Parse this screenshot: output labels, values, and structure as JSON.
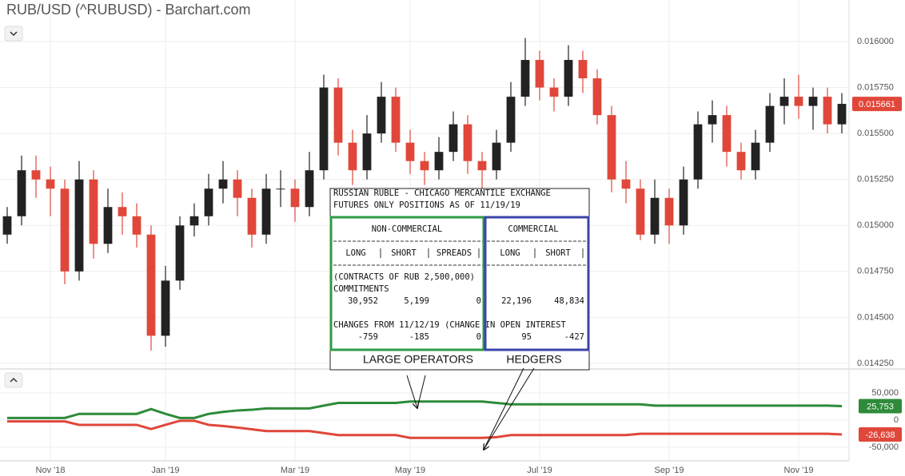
{
  "chart_data": [
    {
      "type": "candlestick",
      "title": "RUB/USD (^RUBUSD) - Barchart.com",
      "open": [
        0.01495,
        0.01505,
        0.0153,
        0.01525,
        0.0152,
        0.01475,
        0.01525,
        0.0149,
        0.0151,
        0.01505,
        0.01495,
        0.0144,
        0.0147,
        0.015,
        0.01505,
        0.0152,
        0.01525,
        0.01515,
        0.01495,
        0.0152,
        0.0152,
        0.0151,
        0.0153,
        0.01575,
        0.01545,
        0.0153,
        0.0155,
        0.0157,
        0.01545,
        0.01535,
        0.0153,
        0.0154,
        0.01555,
        0.01535,
        0.0153,
        0.01545,
        0.0157,
        0.0159,
        0.01575,
        0.0157,
        0.0159,
        0.0158,
        0.0156,
        0.01525,
        0.0152,
        0.01495,
        0.01515,
        0.015,
        0.01525,
        0.01555,
        0.0156,
        0.0154,
        0.0153,
        0.01545,
        0.01565,
        0.0157,
        0.01565,
        0.0157,
        0.01555
      ],
      "high": [
        0.0151,
        0.01538,
        0.01538,
        0.01532,
        0.01525,
        0.01535,
        0.0153,
        0.0152,
        0.01518,
        0.01512,
        0.015,
        0.01478,
        0.01505,
        0.01512,
        0.01528,
        0.01535,
        0.0153,
        0.0152,
        0.01528,
        0.0153,
        0.01525,
        0.0154,
        0.01582,
        0.0158,
        0.01552,
        0.0156,
        0.01578,
        0.01575,
        0.01552,
        0.0154,
        0.01548,
        0.01562,
        0.0156,
        0.0154,
        0.01552,
        0.01578,
        0.01602,
        0.01595,
        0.0158,
        0.01598,
        0.01595,
        0.01585,
        0.01565,
        0.01535,
        0.01525,
        0.01525,
        0.0152,
        0.01532,
        0.01562,
        0.01568,
        0.01565,
        0.01545,
        0.01552,
        0.01572,
        0.0158,
        0.01582,
        0.01575,
        0.01575,
        0.01572
      ],
      "low": [
        0.0149,
        0.015,
        0.01515,
        0.01505,
        0.01468,
        0.0147,
        0.01482,
        0.01485,
        0.01495,
        0.01488,
        0.01432,
        0.01434,
        0.01465,
        0.01494,
        0.015,
        0.01512,
        0.01505,
        0.01488,
        0.0149,
        0.0151,
        0.01502,
        0.01505,
        0.01525,
        0.01538,
        0.01522,
        0.01525,
        0.01545,
        0.0154,
        0.01528,
        0.01522,
        0.01525,
        0.01535,
        0.01528,
        0.0152,
        0.01525,
        0.0154,
        0.01565,
        0.01568,
        0.01562,
        0.01565,
        0.01572,
        0.01555,
        0.01518,
        0.01512,
        0.01492,
        0.0149,
        0.0149,
        0.01495,
        0.0152,
        0.01545,
        0.01532,
        0.01525,
        0.01525,
        0.0154,
        0.01555,
        0.01558,
        0.01552,
        0.0155,
        0.0155
      ],
      "close": [
        0.01505,
        0.0153,
        0.01525,
        0.0152,
        0.01475,
        0.01525,
        0.0149,
        0.0151,
        0.01505,
        0.01495,
        0.0144,
        0.0147,
        0.015,
        0.01505,
        0.0152,
        0.01525,
        0.01515,
        0.01495,
        0.0152,
        0.0152,
        0.0151,
        0.0153,
        0.01575,
        0.01545,
        0.0153,
        0.0155,
        0.0157,
        0.01545,
        0.01535,
        0.0153,
        0.0154,
        0.01555,
        0.01535,
        0.0153,
        0.01545,
        0.0157,
        0.0159,
        0.01575,
        0.0157,
        0.0159,
        0.0158,
        0.0156,
        0.01525,
        0.0152,
        0.01495,
        0.01515,
        0.015,
        0.01525,
        0.01555,
        0.0156,
        0.0154,
        0.0153,
        0.01545,
        0.01565,
        0.0157,
        0.01565,
        0.0157,
        0.01555,
        0.015661
      ],
      "up_color": "#222222",
      "down_color": "#e0473a",
      "ylim": [
        0.014228,
        0.016226
      ],
      "yticks": [
        {
          "value": 0.016,
          "label": "0.016000"
        },
        {
          "value": 0.01575,
          "label": "0.015750"
        },
        {
          "value": 0.0155,
          "label": "0.015500"
        },
        {
          "value": 0.01525,
          "label": "0.015250"
        },
        {
          "value": 0.015,
          "label": "0.015000"
        },
        {
          "value": 0.01475,
          "label": "0.014750"
        },
        {
          "value": 0.0145,
          "label": "0.014500"
        },
        {
          "value": 0.01425,
          "label": "0.014250"
        }
      ],
      "grid": true
    },
    {
      "type": "line",
      "categories": [
        null,
        null,
        null,
        "Nov '18",
        null,
        null,
        null,
        null,
        null,
        null,
        null,
        "Jan '19",
        null,
        null,
        null,
        null,
        null,
        null,
        null,
        null,
        "Mar '19",
        null,
        null,
        null,
        null,
        null,
        null,
        null,
        "May '19",
        null,
        null,
        null,
        null,
        null,
        null,
        null,
        null,
        "Jul '19",
        null,
        null,
        null,
        null,
        null,
        null,
        null,
        null,
        "Sep '19",
        null,
        null,
        null,
        null,
        null,
        null,
        null,
        null,
        "Nov '19",
        null,
        null,
        null
      ],
      "series": [
        {
          "color": "#2e8b3a",
          "values": [
            3800,
            3800,
            3800,
            3800,
            3800,
            11400,
            11400,
            11400,
            11400,
            11400,
            20300,
            11400,
            3800,
            3800,
            11400,
            15000,
            17700,
            19000,
            21500,
            21500,
            21500,
            21500,
            26600,
            31600,
            31600,
            31600,
            31600,
            31600,
            34200,
            34200,
            34200,
            34200,
            34200,
            34200,
            31600,
            29100,
            29100,
            29100,
            29100,
            29100,
            29100,
            29100,
            29100,
            29100,
            29100,
            26600,
            26600,
            26600,
            26600,
            26600,
            26600,
            26600,
            26600,
            26600,
            26600,
            26600,
            26600,
            26600,
            25753
          ],
          "value_labels": [
            null,
            null,
            null,
            null,
            null,
            null,
            null,
            null,
            null,
            null,
            null,
            null,
            null,
            null,
            null,
            null,
            null,
            null,
            null,
            null,
            null,
            null,
            null,
            null,
            null,
            null,
            null,
            null,
            null,
            null,
            null,
            null,
            null,
            null,
            null,
            null,
            null,
            null,
            null,
            null,
            null,
            null,
            null,
            null,
            null,
            null,
            null,
            null,
            null,
            null,
            null,
            null,
            null,
            null,
            null,
            null,
            null,
            null,
            "25,753"
          ]
        },
        {
          "color": "#e0473a",
          "values": [
            -2500,
            -2500,
            -2500,
            -2500,
            -2500,
            -8900,
            -8900,
            -8900,
            -8900,
            -8900,
            -16500,
            -8900,
            -1300,
            -1300,
            -8900,
            -11000,
            -13900,
            -17000,
            -20300,
            -20300,
            -20300,
            -20300,
            -24000,
            -27800,
            -27800,
            -27800,
            -27800,
            -27800,
            -32900,
            -32900,
            -32900,
            -32900,
            -32900,
            -32900,
            -31600,
            -27800,
            -27800,
            -27800,
            -27800,
            -27800,
            -27800,
            -27800,
            -27800,
            -27800,
            -25300,
            -25300,
            -25300,
            -25300,
            -25300,
            -25300,
            -25300,
            -25300,
            -25300,
            -25300,
            -25300,
            -25300,
            -25300,
            -25300,
            -26638
          ],
          "value_labels": [
            null,
            null,
            null,
            null,
            null,
            null,
            null,
            null,
            null,
            null,
            null,
            null,
            null,
            null,
            null,
            null,
            null,
            null,
            null,
            null,
            null,
            null,
            null,
            null,
            null,
            null,
            null,
            null,
            null,
            null,
            null,
            null,
            null,
            null,
            null,
            null,
            null,
            null,
            null,
            null,
            null,
            null,
            null,
            null,
            null,
            null,
            null,
            null,
            null,
            null,
            null,
            null,
            null,
            null,
            null,
            null,
            null,
            null,
            "-26,638"
          ]
        }
      ],
      "ylim": [
        -75300,
        94300
      ],
      "yticks": [
        {
          "value": 50000,
          "label": "50,000"
        },
        0,
        {
          "value": -50000,
          "label": "-50,000"
        }
      ],
      "grid": true
    }
  ],
  "cot_box": {
    "title_lines": [
      "RUSSIAN RUBLE - CHICAGO MERCANTILE EXCHANGE",
      "FUTURES ONLY POSITIONS AS OF 11/19/19"
    ],
    "units": "(CONTRACTS OF RUB 2,500,000)",
    "commitments_label": "COMMITMENTS",
    "changes_label": "CHANGES FROM 11/12/19 (CHANGE IN OPEN INTEREST",
    "groups": [
      {
        "label": "NON-COMMERCIAL",
        "columns": [
          "LONG",
          "SHORT",
          "SPREADS"
        ],
        "commitments": [
          "30,952",
          "5,199",
          "0"
        ],
        "changes": [
          "-759",
          "-185",
          "0"
        ],
        "caption": "LARGE OPERATORS"
      },
      {
        "label": "COMMERCIAL",
        "columns": [
          "LONG",
          "SHORT"
        ],
        "commitments": [
          "22,196",
          "48,834"
        ],
        "changes": [
          "95",
          "-427"
        ],
        "caption": "HEDGERS"
      }
    ]
  }
}
